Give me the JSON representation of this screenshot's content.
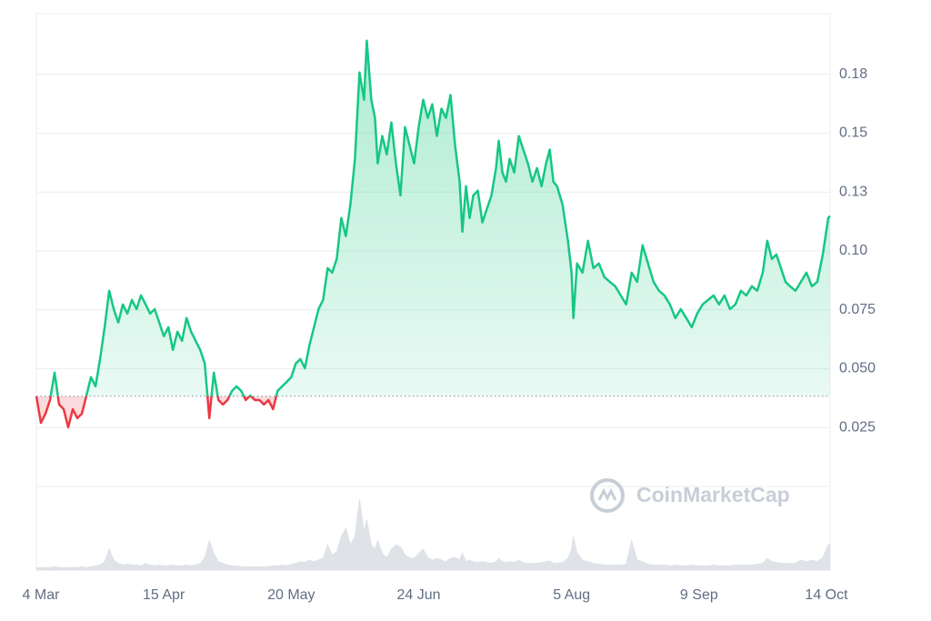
{
  "chart_data": {
    "type": "line",
    "x": [
      0,
      1.25,
      2.5,
      3.75,
      5,
      6.25,
      7.5,
      8.75,
      10,
      11.25,
      12.5,
      13.75,
      15,
      16.25,
      17.5,
      18.75,
      20,
      21.25,
      22.5,
      23.75,
      25,
      26.25,
      27.5,
      28.75,
      30,
      31.25,
      32.5,
      33.75,
      35,
      36.25,
      37.5,
      38.75,
      40,
      41.25,
      42.5,
      43.75,
      45,
      46.25,
      47.5,
      48.75,
      50,
      51.25,
      52.5,
      53.75,
      55,
      56.25,
      57.5,
      58.75,
      60,
      61.25,
      62.5,
      63.75,
      65,
      66.25,
      67.5,
      68.75,
      70,
      71.25,
      72.5,
      73.75,
      75,
      76.25,
      77.5,
      78.75,
      80,
      81.25,
      82.5,
      83.75,
      85,
      86.25,
      87.5,
      88.75,
      90,
      90.75,
      92,
      93,
      93.75,
      95,
      96.25,
      97.5,
      98.75,
      100,
      101.25,
      102.5,
      103.75,
      105,
      106.25,
      107.5,
      108.75,
      110,
      111.25,
      112.5,
      113.75,
      115,
      116.25,
      117,
      118,
      119,
      120,
      121.25,
      122.5,
      123.75,
      125,
      126.25,
      127,
      128,
      129,
      130,
      131.25,
      132.5,
      133.75,
      135,
      136.25,
      137.5,
      138.75,
      140,
      141,
      142,
      143,
      144.5,
      146,
      147,
      147.5,
      148.5,
      150,
      151.5,
      153,
      154.5,
      156,
      157.5,
      159,
      160.5,
      162,
      163.5,
      165,
      166.5,
      168,
      169.5,
      171,
      172.5,
      174,
      175.5,
      177,
      178.5,
      180,
      181.5,
      183,
      184.5,
      186,
      187.5,
      189,
      190.5,
      192,
      193.5,
      195,
      196.5,
      198,
      199.5,
      200.75,
      202,
      203.25,
      204.5,
      205.75,
      207,
      208.5,
      210,
      211.5,
      213,
      214.5,
      216,
      217.5,
      218
    ],
    "values": [
      0.0383,
      0.027,
      0.0309,
      0.0367,
      0.0483,
      0.0348,
      0.0328,
      0.0251,
      0.0328,
      0.029,
      0.0309,
      0.0386,
      0.0464,
      0.0425,
      0.0541,
      0.0676,
      0.0831,
      0.0753,
      0.0696,
      0.0773,
      0.0734,
      0.0792,
      0.0753,
      0.0811,
      0.0773,
      0.0734,
      0.0753,
      0.0696,
      0.0638,
      0.0676,
      0.058,
      0.0657,
      0.0618,
      0.0715,
      0.0657,
      0.0618,
      0.058,
      0.0522,
      0.029,
      0.0483,
      0.0367,
      0.0348,
      0.0367,
      0.0406,
      0.0425,
      0.0406,
      0.0367,
      0.0386,
      0.0367,
      0.0367,
      0.0348,
      0.0367,
      0.0328,
      0.0406,
      0.0425,
      0.0444,
      0.0464,
      0.0522,
      0.0541,
      0.0502,
      0.0599,
      0.0676,
      0.0753,
      0.0792,
      0.0927,
      0.0908,
      0.0966,
      0.114,
      0.1063,
      0.1198,
      0.1391,
      0.1758,
      0.1642,
      0.1893,
      0.1642,
      0.1565,
      0.1372,
      0.1488,
      0.141,
      0.1546,
      0.1372,
      0.1236,
      0.1526,
      0.1449,
      0.1372,
      0.1526,
      0.1642,
      0.1565,
      0.1623,
      0.1488,
      0.1604,
      0.1565,
      0.1662,
      0.1449,
      0.1294,
      0.1082,
      0.1275,
      0.114,
      0.1236,
      0.1256,
      0.1121,
      0.1179,
      0.1236,
      0.1352,
      0.1468,
      0.1333,
      0.1294,
      0.1391,
      0.1333,
      0.1488,
      0.143,
      0.1372,
      0.1294,
      0.1352,
      0.1275,
      0.1372,
      0.143,
      0.1294,
      0.1275,
      0.1198,
      0.1043,
      0.0908,
      0.0715,
      0.0947,
      0.0908,
      0.1043,
      0.0927,
      0.0947,
      0.0889,
      0.0869,
      0.085,
      0.0811,
      0.0773,
      0.0908,
      0.0869,
      0.1024,
      0.0947,
      0.0869,
      0.0831,
      0.0811,
      0.0773,
      0.0715,
      0.0753,
      0.0715,
      0.0676,
      0.0734,
      0.0773,
      0.0792,
      0.0811,
      0.0773,
      0.0811,
      0.0753,
      0.0773,
      0.0831,
      0.0811,
      0.085,
      0.0831,
      0.0908,
      0.1043,
      0.0966,
      0.0985,
      0.0927,
      0.0869,
      0.085,
      0.0831,
      0.0869,
      0.0908,
      0.085,
      0.0869,
      0.0985,
      0.114,
      0.1148
    ],
    "volume": [
      3,
      3,
      3,
      3,
      4,
      3,
      3,
      3,
      3,
      3,
      4,
      3,
      4,
      5,
      6,
      10,
      25,
      12,
      8,
      6,
      7,
      6,
      6,
      5,
      8,
      6,
      5,
      6,
      5,
      5,
      6,
      5,
      5,
      6,
      5,
      6,
      8,
      15,
      35,
      20,
      10,
      8,
      6,
      5,
      5,
      4,
      4,
      4,
      4,
      4,
      4,
      4,
      5,
      5,
      6,
      5,
      7,
      8,
      10,
      9,
      12,
      10,
      12,
      14,
      30,
      18,
      22,
      40,
      50,
      30,
      40,
      85,
      45,
      60,
      30,
      25,
      35,
      20,
      15,
      25,
      30,
      28,
      18,
      15,
      14,
      20,
      25,
      15,
      12,
      14,
      12,
      10,
      14,
      15,
      12,
      20,
      10,
      12,
      10,
      9,
      10,
      9,
      8,
      10,
      14,
      10,
      9,
      10,
      9,
      12,
      9,
      8,
      8,
      8,
      9,
      10,
      11,
      8,
      8,
      9,
      14,
      25,
      40,
      20,
      12,
      10,
      8,
      7,
      6,
      6,
      6,
      6,
      7,
      35,
      12,
      10,
      7,
      6,
      6,
      6,
      5,
      6,
      5,
      5,
      6,
      5,
      5,
      5,
      6,
      5,
      5,
      5,
      6,
      6,
      6,
      6,
      7,
      8,
      14,
      10,
      9,
      8,
      8,
      8,
      8,
      12,
      10,
      12,
      10,
      15,
      30,
      32
    ],
    "xlim": [
      0,
      218
    ],
    "ylim": [
      0,
      0.2
    ],
    "volume_lim": [
      0,
      100
    ],
    "baseline": 0.0383,
    "xticks": [
      {
        "value": 1.25,
        "label": "4 Mar"
      },
      {
        "value": 35,
        "label": "15 Apr"
      },
      {
        "value": 70,
        "label": "20 May"
      },
      {
        "value": 105,
        "label": "24 Jun"
      },
      {
        "value": 147,
        "label": "5 Aug"
      },
      {
        "value": 182,
        "label": "9 Sep"
      },
      {
        "value": 217,
        "label": "14 Oct"
      }
    ],
    "yticks": [
      {
        "value": 0.025,
        "label": "0.025"
      },
      {
        "value": 0.05,
        "label": "0.050"
      },
      0.075,
      {
        "value": 0.1,
        "label": "0.10"
      },
      {
        "value": 0.125,
        "label": "0.13"
      },
      0.15,
      {
        "value": 0.175,
        "label": "0.18"
      }
    ],
    "grid": true,
    "color_up": "#16c784",
    "color_down": "#ea3943",
    "volume_color": "#dfe3e8",
    "watermark": "CoinMarketCap"
  }
}
